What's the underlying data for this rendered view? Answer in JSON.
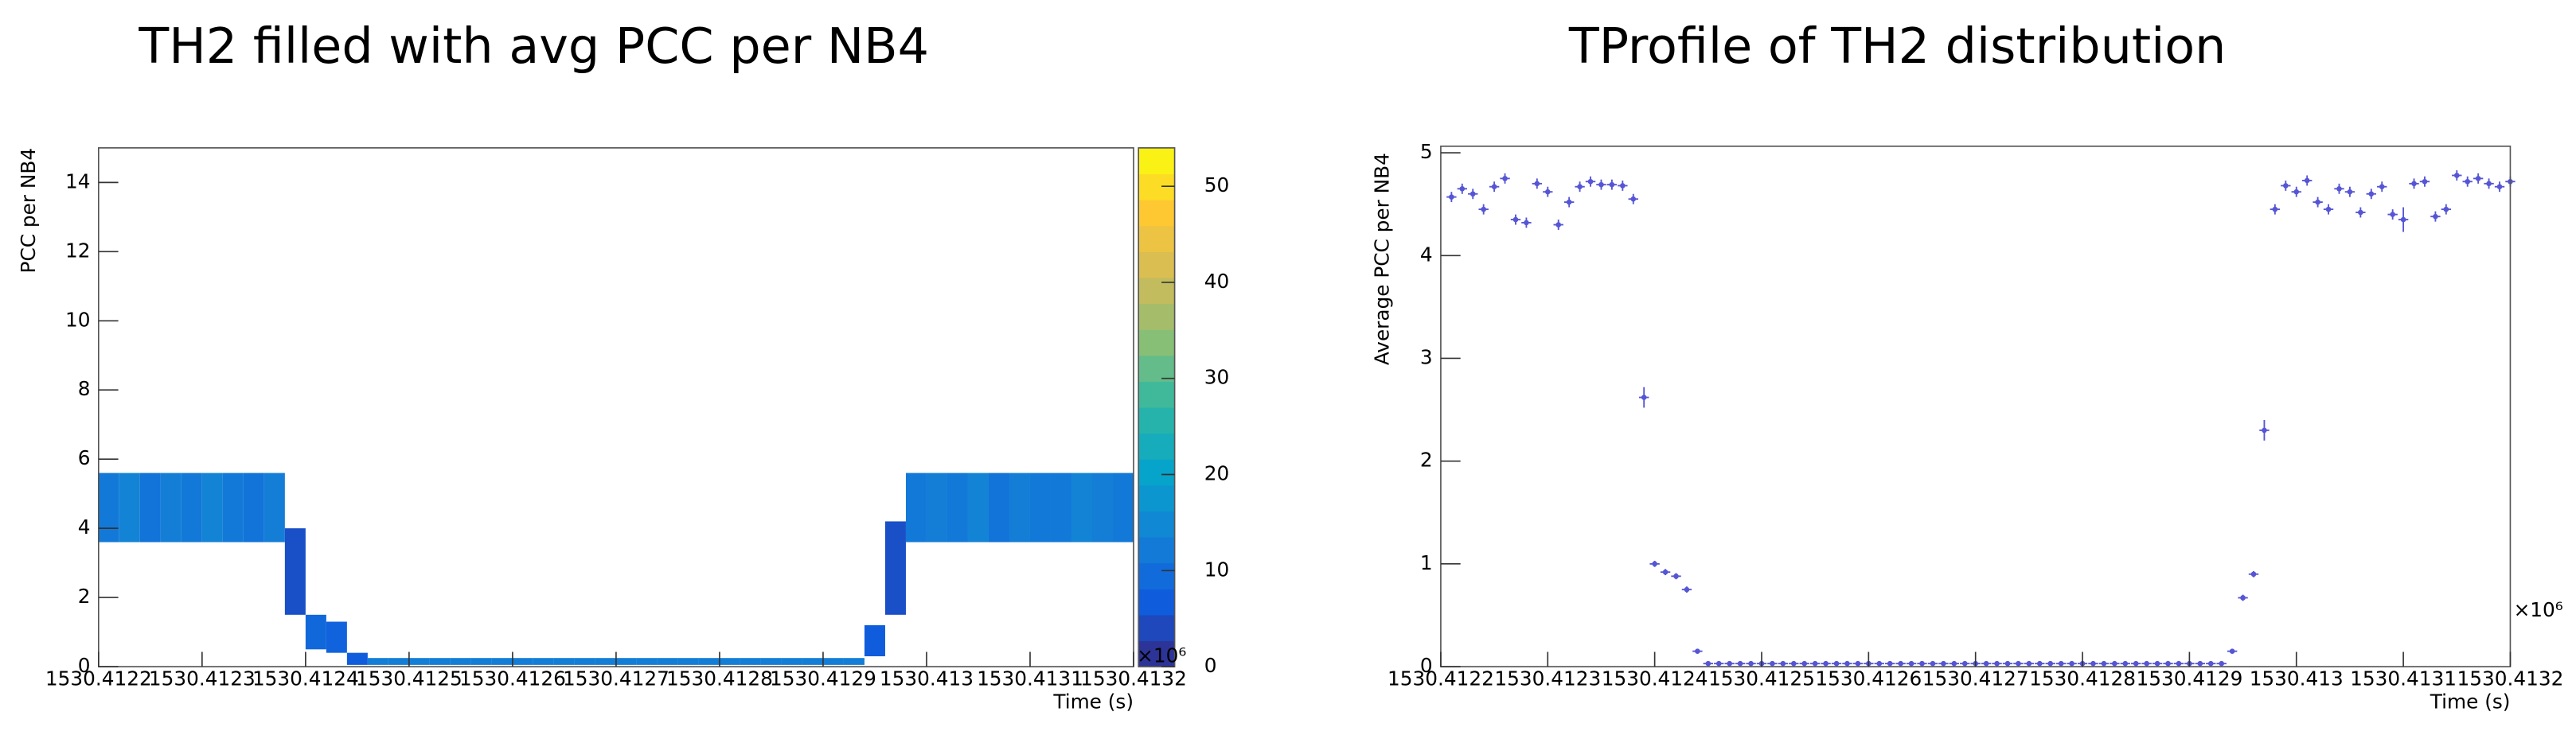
{
  "chart_data": [
    {
      "type": "heatmap",
      "title": "TH2 filled with avg PCC per NB4",
      "ylabel": "PCC per NB4",
      "xlabel": "Time (s)",
      "x_multiplier": "×10⁶",
      "xlim": [
        1530.4122,
        1530.4132
      ],
      "xticks": [
        1530.4122,
        1530.4123,
        1530.4124,
        1530.4125,
        1530.4126,
        1530.4127,
        1530.4128,
        1530.4129,
        1530.413,
        1530.4131,
        1530.4132
      ],
      "ylim": [
        0,
        15
      ],
      "yticks": [
        0,
        2,
        4,
        6,
        8,
        10,
        12,
        14
      ],
      "zlim": [
        0,
        54
      ],
      "zticks": [
        0,
        10,
        20,
        30,
        40,
        50
      ],
      "palette": [
        "#352a87",
        "#0f5cdd",
        "#1481d6",
        "#06a4ca",
        "#2eb7a4",
        "#87bf77",
        "#d1bb59",
        "#fec832",
        "#f9fb0e"
      ],
      "x_bins": [
        1530.4122,
        1530.41222,
        1530.41224,
        1530.41226,
        1530.41228,
        1530.4123,
        1530.41232,
        1530.41234,
        1530.41236,
        1530.41238,
        1530.4124,
        1530.41242,
        1530.41244,
        1530.41246,
        1530.41248,
        1530.4125,
        1530.41252,
        1530.41254,
        1530.41256,
        1530.41258,
        1530.4126,
        1530.41262,
        1530.41264,
        1530.41266,
        1530.41268,
        1530.4127,
        1530.41272,
        1530.41274,
        1530.41276,
        1530.41278,
        1530.4128,
        1530.41282,
        1530.41284,
        1530.41286,
        1530.41288,
        1530.4129,
        1530.41292,
        1530.41294,
        1530.41296,
        1530.41298,
        1530.413,
        1530.41302,
        1530.41304,
        1530.41306,
        1530.41308,
        1530.4131,
        1530.41312,
        1530.41314,
        1530.41316,
        1530.41318,
        1530.4132
      ],
      "y_low": [
        3.6,
        3.6,
        3.6,
        3.6,
        3.6,
        3.6,
        3.6,
        3.6,
        3.6,
        1.5,
        0.5,
        0.4,
        0.05,
        0.05,
        0.05,
        0.05,
        0.05,
        0.05,
        0.05,
        0.05,
        0.05,
        0.05,
        0.05,
        0.05,
        0.05,
        0.05,
        0.05,
        0.05,
        0.05,
        0.05,
        0.05,
        0.05,
        0.05,
        0.05,
        0.05,
        0.05,
        0.05,
        0.3,
        1.5,
        3.6,
        3.6,
        3.6,
        3.6,
        3.6,
        3.6,
        3.6,
        3.6,
        3.6,
        3.6,
        3.6
      ],
      "y_high": [
        5.6,
        5.6,
        5.6,
        5.6,
        5.6,
        5.6,
        5.6,
        5.6,
        5.6,
        4.0,
        1.5,
        1.3,
        0.4,
        0.25,
        0.25,
        0.25,
        0.25,
        0.25,
        0.25,
        0.25,
        0.25,
        0.25,
        0.25,
        0.25,
        0.25,
        0.25,
        0.25,
        0.25,
        0.25,
        0.25,
        0.25,
        0.25,
        0.25,
        0.25,
        0.25,
        0.25,
        0.25,
        1.2,
        4.2,
        5.6,
        5.6,
        5.6,
        5.6,
        5.6,
        5.6,
        5.6,
        5.6,
        5.6,
        5.6,
        5.6
      ],
      "counts": [
        12,
        14,
        11,
        13,
        12,
        14,
        12,
        11,
        13,
        5,
        9,
        8,
        7,
        13,
        13,
        13,
        13,
        13,
        13,
        13,
        13,
        13,
        13,
        13,
        13,
        13,
        13,
        13,
        13,
        13,
        13,
        13,
        13,
        13,
        13,
        13,
        13,
        7,
        5,
        12,
        13,
        12,
        14,
        11,
        13,
        12,
        12,
        14,
        13,
        12
      ]
    },
    {
      "type": "profile",
      "title": "TProfile of TH2 distribution",
      "ylabel": "Average PCC per NB4",
      "xlabel": "Time (s)",
      "x_multiplier": "×10⁶",
      "xlim": [
        1530.4122,
        1530.4132
      ],
      "xticks": [
        1530.4122,
        1530.4123,
        1530.4124,
        1530.4125,
        1530.4126,
        1530.4127,
        1530.4128,
        1530.4129,
        1530.413,
        1530.4131,
        1530.4132
      ],
      "ylim": [
        0,
        5
      ],
      "yticks": [
        0,
        1,
        2,
        3,
        4,
        5
      ],
      "color": "#5555d5",
      "x": [
        1530.41221,
        1530.41222,
        1530.41223,
        1530.41224,
        1530.41225,
        1530.41226,
        1530.41227,
        1530.41228,
        1530.41229,
        1530.4123,
        1530.41231,
        1530.41232,
        1530.41233,
        1530.41234,
        1530.41235,
        1530.41236,
        1530.41237,
        1530.41238,
        1530.41239,
        1530.4124,
        1530.41241,
        1530.41242,
        1530.41243,
        1530.41244,
        1530.41245,
        1530.41246,
        1530.41247,
        1530.41248,
        1530.41249,
        1530.4125,
        1530.41251,
        1530.41252,
        1530.41253,
        1530.41254,
        1530.41255,
        1530.41256,
        1530.41257,
        1530.41258,
        1530.41259,
        1530.4126,
        1530.41261,
        1530.41262,
        1530.41263,
        1530.41264,
        1530.41265,
        1530.41266,
        1530.41267,
        1530.41268,
        1530.41269,
        1530.4127,
        1530.41271,
        1530.41272,
        1530.41273,
        1530.41274,
        1530.41275,
        1530.41276,
        1530.41277,
        1530.41278,
        1530.41279,
        1530.4128,
        1530.41281,
        1530.41282,
        1530.41283,
        1530.41284,
        1530.41285,
        1530.41286,
        1530.41287,
        1530.41288,
        1530.41289,
        1530.4129,
        1530.41291,
        1530.41292,
        1530.41293,
        1530.41294,
        1530.41295,
        1530.41296,
        1530.41297,
        1530.41298,
        1530.41299,
        1530.413,
        1530.41301,
        1530.41302,
        1530.41303,
        1530.41304,
        1530.41305,
        1530.41306,
        1530.41307,
        1530.41308,
        1530.41309,
        1530.4131,
        1530.41311,
        1530.41312,
        1530.41313,
        1530.41314,
        1530.41315,
        1530.41316,
        1530.41317,
        1530.41318,
        1530.41319,
        1530.4132
      ],
      "values": [
        4.57,
        4.65,
        4.6,
        4.45,
        4.67,
        4.75,
        4.35,
        4.32,
        4.7,
        4.62,
        4.3,
        4.52,
        4.67,
        4.72,
        4.69,
        4.69,
        4.68,
        4.55,
        2.62,
        1.0,
        0.92,
        0.88,
        0.75,
        0.15,
        0.03,
        0.03,
        0.03,
        0.03,
        0.03,
        0.03,
        0.03,
        0.03,
        0.03,
        0.03,
        0.03,
        0.03,
        0.03,
        0.03,
        0.03,
        0.03,
        0.03,
        0.03,
        0.03,
        0.03,
        0.03,
        0.03,
        0.03,
        0.03,
        0.03,
        0.03,
        0.03,
        0.03,
        0.03,
        0.03,
        0.03,
        0.03,
        0.03,
        0.03,
        0.03,
        0.03,
        0.03,
        0.03,
        0.03,
        0.03,
        0.03,
        0.03,
        0.03,
        0.03,
        0.03,
        0.03,
        0.03,
        0.03,
        0.03,
        0.15,
        0.67,
        0.9,
        2.3,
        4.45,
        4.68,
        4.62,
        4.73,
        4.52,
        4.45,
        4.65,
        4.62,
        4.42,
        4.6,
        4.67,
        4.4,
        4.35,
        4.7,
        4.72,
        4.38,
        4.45,
        4.78,
        4.72,
        4.75,
        4.7,
        4.67,
        4.72
      ],
      "errors": [
        0.05,
        0.05,
        0.05,
        0.05,
        0.05,
        0.05,
        0.05,
        0.05,
        0.05,
        0.05,
        0.05,
        0.05,
        0.05,
        0.05,
        0.05,
        0.05,
        0.05,
        0.05,
        0.1,
        0.03,
        0.03,
        0.03,
        0.03,
        0.02,
        0.01,
        0.01,
        0.01,
        0.01,
        0.01,
        0.01,
        0.01,
        0.01,
        0.01,
        0.01,
        0.01,
        0.01,
        0.01,
        0.01,
        0.01,
        0.01,
        0.01,
        0.01,
        0.01,
        0.01,
        0.01,
        0.01,
        0.01,
        0.01,
        0.01,
        0.01,
        0.01,
        0.01,
        0.01,
        0.01,
        0.01,
        0.01,
        0.01,
        0.01,
        0.01,
        0.01,
        0.01,
        0.01,
        0.01,
        0.01,
        0.01,
        0.01,
        0.01,
        0.01,
        0.01,
        0.01,
        0.01,
        0.01,
        0.01,
        0.02,
        0.03,
        0.03,
        0.1,
        0.05,
        0.05,
        0.05,
        0.05,
        0.05,
        0.05,
        0.05,
        0.05,
        0.05,
        0.05,
        0.05,
        0.05,
        0.12,
        0.05,
        0.05,
        0.05,
        0.05,
        0.05,
        0.05,
        0.05,
        0.05,
        0.05,
        0.05
      ]
    }
  ]
}
